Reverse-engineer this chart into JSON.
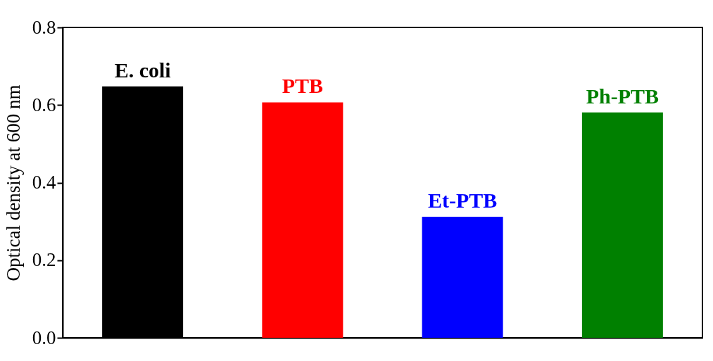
{
  "chart_data": {
    "type": "bar",
    "ylabel": "Optical density at 600 nm",
    "categories": [
      "E. coli",
      "PTB",
      "Et-PTB",
      "Ph-PTB"
    ],
    "values": [
      0.648,
      0.607,
      0.312,
      0.581
    ],
    "colors": [
      "#000000",
      "#ff0000",
      "#0000ff",
      "#008000"
    ],
    "ylim": [
      0,
      0.8
    ],
    "yticks": [
      {
        "value": 0,
        "label": "0.0"
      },
      {
        "value": 0.2,
        "label": "0.2"
      },
      {
        "value": 0.4,
        "label": "0.4"
      },
      {
        "value": 0.6,
        "label": "0.6"
      },
      {
        "value": 0.8,
        "label": "0.8"
      }
    ],
    "grid": false,
    "tick_labels": "y"
  }
}
